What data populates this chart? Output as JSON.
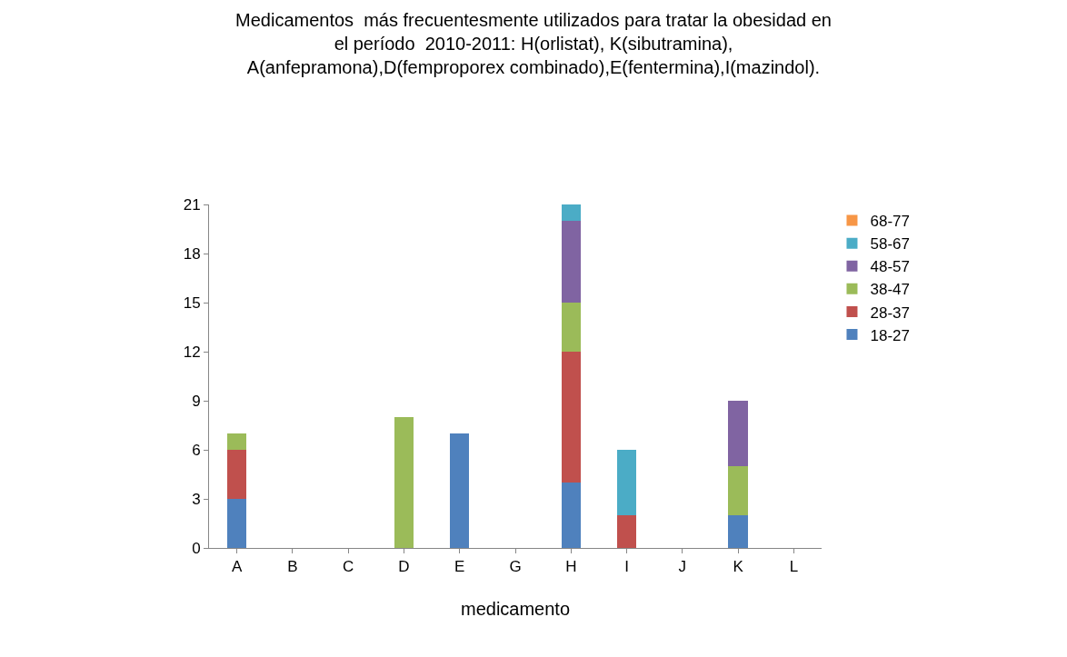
{
  "chart_data": {
    "type": "bar",
    "stacked": true,
    "title": "Medicamentos  más frecuentesmente utilizados para tratar la obesidad en el período  2010-2011: H(orlistat), K(sibutramina), A(anfepramona),D(femproporex combinado),E(fentermina),I(mazindol).",
    "xlabel": "medicamento",
    "categories": [
      "A",
      "B",
      "C",
      "D",
      "E",
      "G",
      "H",
      "I",
      "J",
      "K",
      "L"
    ],
    "series": [
      {
        "name": "18-27",
        "color": "#4f81bd",
        "values": [
          3,
          0,
          0,
          0,
          7,
          0,
          4,
          0,
          0,
          2,
          0
        ]
      },
      {
        "name": "28-37",
        "color": "#c0504d",
        "values": [
          3,
          0,
          0,
          0,
          0,
          0,
          8,
          2,
          0,
          0,
          0
        ]
      },
      {
        "name": "38-47",
        "color": "#9bbb59",
        "values": [
          1,
          0,
          0,
          8,
          0,
          0,
          3,
          0,
          0,
          3,
          0
        ]
      },
      {
        "name": "48-57",
        "color": "#8064a2",
        "values": [
          0,
          0,
          0,
          0,
          0,
          0,
          5,
          0,
          0,
          4,
          0
        ]
      },
      {
        "name": "58-67",
        "color": "#4bacc6",
        "values": [
          0,
          0,
          0,
          0,
          0,
          0,
          1,
          4,
          0,
          0,
          0
        ]
      },
      {
        "name": "68-77",
        "color": "#f79646",
        "values": [
          0,
          0,
          0,
          0,
          0,
          0,
          0,
          0,
          0,
          0,
          0
        ]
      }
    ],
    "ylim": [
      0,
      21
    ],
    "yticks": [
      0,
      3,
      6,
      9,
      12,
      15,
      18,
      21
    ],
    "grid": false,
    "legend": "right"
  }
}
